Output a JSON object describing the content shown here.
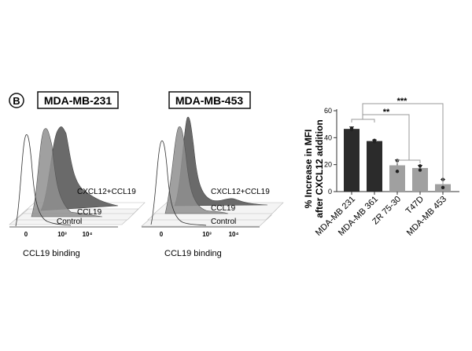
{
  "panel_label": "B",
  "histograms": [
    {
      "title": "MDA-MB-231",
      "series_labels": [
        "CXCL12+CCL19",
        "CCL19",
        "Control"
      ],
      "tick_labels": [
        "0",
        "10³",
        "10⁴"
      ],
      "xlabel": "CCL19 binding"
    },
    {
      "title": "MDA-MB-453",
      "series_labels": [
        "CXCL12+CCL19",
        "CCL19",
        "Control"
      ],
      "tick_labels": [
        "0",
        "10³",
        "10⁴"
      ],
      "xlabel": "CCL19 binding"
    }
  ],
  "chart_data": {
    "type": "bar",
    "categories": [
      "MDA-MB 231",
      "MDA-MB 361",
      "ZR 75-30",
      "T47D",
      "MDA-MB 453"
    ],
    "values": [
      46.5,
      37.5,
      19.5,
      17.5,
      5.5
    ],
    "errors": [
      1.5,
      0.8,
      4,
      2,
      3.5
    ],
    "points": [
      [
        47,
        46
      ],
      [
        37,
        38
      ],
      [
        23,
        15
      ],
      [
        19,
        16
      ],
      [
        9,
        3
      ]
    ],
    "bar_colors": [
      "#2b2b2b",
      "#2b2b2b",
      "#a0a0a0",
      "#a0a0a0",
      "#a0a0a0"
    ],
    "ylabel": "% Increase in MFI after CXCL12 addition",
    "ylabel_lines": [
      "% Increase in MFI",
      "after CXCL12 addition"
    ],
    "yticks": [
      0,
      20,
      40,
      60
    ],
    "ylim": [
      0,
      60
    ],
    "significance": [
      {
        "label": "**"
      },
      {
        "label": "***"
      }
    ]
  }
}
